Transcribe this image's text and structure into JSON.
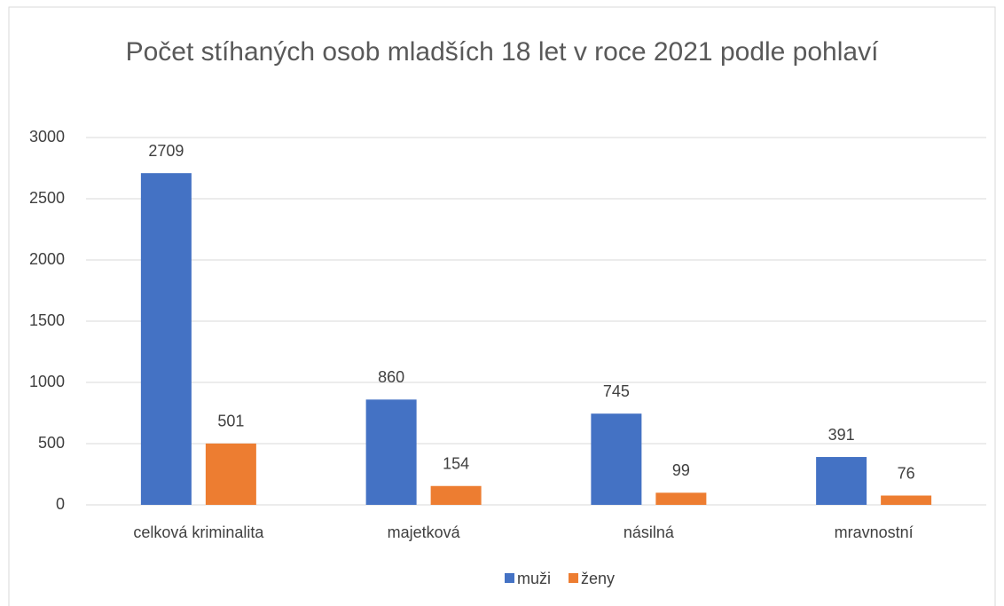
{
  "chart_data": {
    "type": "bar",
    "title": "Počet stíhaných osob mladších 18 let v roce 2021 podle pohlaví",
    "categories": [
      "celková kriminalita",
      "majetková",
      "násilná",
      "mravnostní"
    ],
    "series": [
      {
        "name": "muži",
        "color": "#4472c4",
        "values": [
          2709,
          860,
          745,
          391
        ]
      },
      {
        "name": "ženy",
        "color": "#ed7d31",
        "values": [
          501,
          154,
          99,
          76
        ]
      }
    ],
    "ylim": [
      0,
      3000
    ],
    "yticks": [
      0,
      500,
      1000,
      1500,
      2000,
      2500,
      3000
    ],
    "grid": true,
    "legend": "bottom"
  }
}
